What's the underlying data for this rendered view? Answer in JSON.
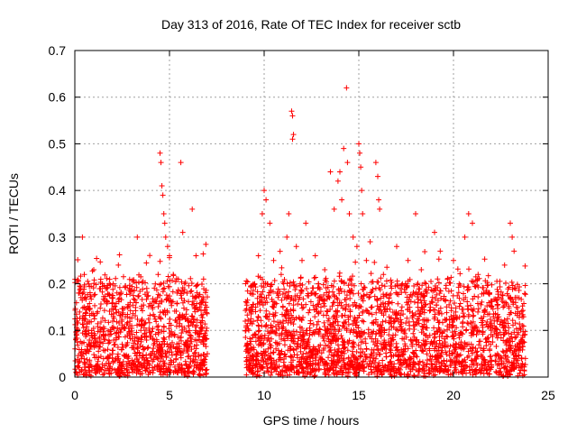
{
  "chart_data": {
    "type": "scatter",
    "title": "Day 313 of 2016, Rate Of TEC Index for receiver sctb",
    "xlabel": "GPS time / hours",
    "ylabel": "ROTI / TECUs",
    "xlim": [
      0,
      25
    ],
    "ylim": [
      0,
      0.7
    ],
    "xticks": [
      0,
      5,
      10,
      15,
      20,
      25
    ],
    "yticks": [
      0,
      0.1,
      0.2,
      0.3,
      0.4,
      0.5,
      0.6,
      0.7
    ],
    "xtick_labels": [
      "0",
      "5",
      "10",
      "15",
      "20",
      "25"
    ],
    "ytick_labels": [
      "0",
      "0.1",
      "0.2",
      "0.3",
      "0.4",
      "0.5",
      "0.6",
      "0.7"
    ],
    "grid": true,
    "marker": "+",
    "color": "#ff0000",
    "series": [
      {
        "name": "ROTI",
        "points": [
          [
            0.05,
            0.08
          ],
          [
            0.1,
            0.12
          ],
          [
            0.2,
            0.18
          ],
          [
            0.3,
            0.05
          ],
          [
            0.4,
            0.3
          ],
          [
            0.5,
            0.22
          ],
          [
            0.6,
            0.1
          ],
          [
            0.8,
            0.06
          ],
          [
            1.0,
            0.23
          ],
          [
            1.2,
            0.14
          ],
          [
            1.5,
            0.09
          ],
          [
            1.8,
            0.04
          ],
          [
            2.0,
            0.12
          ],
          [
            2.3,
            0.24
          ],
          [
            2.5,
            0.07
          ],
          [
            2.8,
            0.15
          ],
          [
            3.0,
            0.11
          ],
          [
            3.3,
            0.3
          ],
          [
            3.5,
            0.08
          ],
          [
            3.8,
            0.19
          ],
          [
            4.0,
            0.05
          ],
          [
            4.2,
            0.13
          ],
          [
            4.4,
            0.22
          ],
          [
            4.5,
            0.48
          ],
          [
            4.55,
            0.46
          ],
          [
            4.6,
            0.41
          ],
          [
            4.65,
            0.39
          ],
          [
            4.7,
            0.35
          ],
          [
            4.75,
            0.33
          ],
          [
            4.8,
            0.3
          ],
          [
            4.9,
            0.28
          ],
          [
            5.0,
            0.26
          ],
          [
            5.2,
            0.22
          ],
          [
            5.4,
            0.18
          ],
          [
            5.6,
            0.46
          ],
          [
            5.7,
            0.31
          ],
          [
            5.8,
            0.2
          ],
          [
            6.0,
            0.12
          ],
          [
            6.2,
            0.36
          ],
          [
            6.4,
            0.26
          ],
          [
            6.6,
            0.15
          ],
          [
            6.8,
            0.21
          ],
          [
            6.9,
            0.09
          ],
          [
            7.0,
            0.05
          ],
          [
            9.1,
            0.07
          ],
          [
            9.3,
            0.12
          ],
          [
            9.5,
            0.2
          ],
          [
            9.7,
            0.26
          ],
          [
            9.9,
            0.35
          ],
          [
            10.0,
            0.4
          ],
          [
            10.1,
            0.38
          ],
          [
            10.3,
            0.33
          ],
          [
            10.5,
            0.25
          ],
          [
            10.7,
            0.18
          ],
          [
            10.9,
            0.22
          ],
          [
            11.0,
            0.12
          ],
          [
            11.2,
            0.3
          ],
          [
            11.3,
            0.35
          ],
          [
            11.45,
            0.57
          ],
          [
            11.5,
            0.56
          ],
          [
            11.55,
            0.52
          ],
          [
            11.5,
            0.51
          ],
          [
            11.7,
            0.28
          ],
          [
            11.9,
            0.2
          ],
          [
            12.0,
            0.25
          ],
          [
            12.2,
            0.33
          ],
          [
            12.5,
            0.18
          ],
          [
            12.7,
            0.26
          ],
          [
            13.0,
            0.15
          ],
          [
            13.2,
            0.23
          ],
          [
            13.5,
            0.44
          ],
          [
            13.7,
            0.36
          ],
          [
            13.9,
            0.42
          ],
          [
            14.0,
            0.44
          ],
          [
            14.1,
            0.38
          ],
          [
            14.2,
            0.49
          ],
          [
            14.35,
            0.62
          ],
          [
            14.4,
            0.46
          ],
          [
            14.5,
            0.35
          ],
          [
            14.7,
            0.3
          ],
          [
            14.9,
            0.28
          ],
          [
            15.0,
            0.5
          ],
          [
            15.05,
            0.48
          ],
          [
            15.1,
            0.45
          ],
          [
            15.15,
            0.4
          ],
          [
            15.2,
            0.35
          ],
          [
            15.4,
            0.25
          ],
          [
            15.6,
            0.29
          ],
          [
            15.9,
            0.46
          ],
          [
            16.0,
            0.43
          ],
          [
            16.05,
            0.38
          ],
          [
            16.1,
            0.36
          ],
          [
            16.3,
            0.22
          ],
          [
            16.6,
            0.17
          ],
          [
            17.0,
            0.28
          ],
          [
            17.3,
            0.2
          ],
          [
            17.6,
            0.25
          ],
          [
            18.0,
            0.35
          ],
          [
            18.3,
            0.23
          ],
          [
            18.6,
            0.18
          ],
          [
            19.0,
            0.31
          ],
          [
            19.3,
            0.27
          ],
          [
            19.6,
            0.19
          ],
          [
            20.0,
            0.25
          ],
          [
            20.3,
            0.2
          ],
          [
            20.6,
            0.3
          ],
          [
            20.8,
            0.35
          ],
          [
            21.0,
            0.33
          ],
          [
            21.3,
            0.22
          ],
          [
            21.6,
            0.18
          ],
          [
            22.0,
            0.15
          ],
          [
            22.3,
            0.12
          ],
          [
            22.7,
            0.24
          ],
          [
            23.0,
            0.33
          ],
          [
            23.1,
            0.3
          ],
          [
            23.2,
            0.27
          ],
          [
            23.4,
            0.14
          ],
          [
            23.6,
            0.08
          ],
          [
            23.8,
            0.04
          ]
        ]
      }
    ],
    "density_segments": [
      [
        0.0,
        7.0
      ],
      [
        9.0,
        23.8
      ]
    ]
  }
}
